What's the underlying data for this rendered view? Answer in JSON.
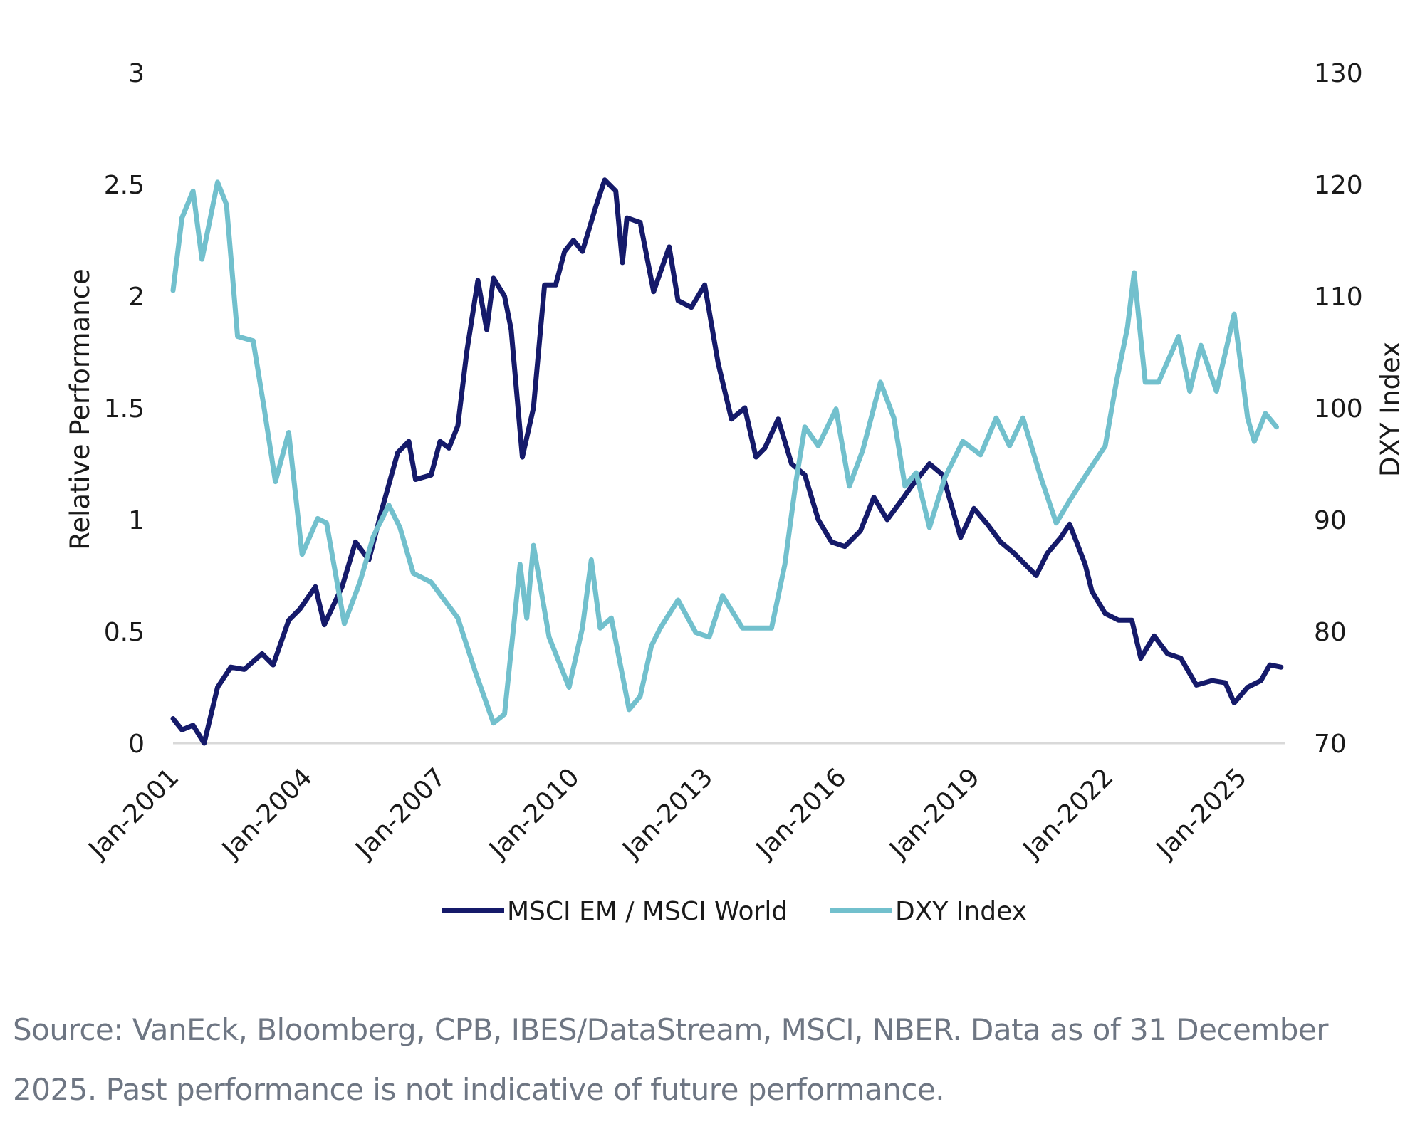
{
  "chart_data": {
    "type": "line",
    "title": "",
    "ylabel": "Relative Performance",
    "y2label": "DXY Index",
    "ylim": [
      0,
      3
    ],
    "y2lim": [
      70,
      130
    ],
    "yticks": [
      "0",
      "0.5",
      "1",
      "1.5",
      "2",
      "2.5",
      "3"
    ],
    "y2ticks": [
      "70",
      "80",
      "90",
      "100",
      "110",
      "120",
      "130"
    ],
    "xlim": [
      2001.0,
      2026.0
    ],
    "xticks": [
      {
        "label": "Jan-2001",
        "x": 2001
      },
      {
        "label": "Jan-2004",
        "x": 2004
      },
      {
        "label": "Jan-2007",
        "x": 2007
      },
      {
        "label": "Jan-2010",
        "x": 2010
      },
      {
        "label": "Jan-2013",
        "x": 2013
      },
      {
        "label": "Jan-2016",
        "x": 2016
      },
      {
        "label": "Jan-2019",
        "x": 2019
      },
      {
        "label": "Jan-2022",
        "x": 2022
      },
      {
        "label": "Jan-2025",
        "x": 2025
      }
    ],
    "legend_position": "bottom-center",
    "series": [
      {
        "name": "MSCI EM / MSCI World",
        "axis": "left",
        "color": "#151a6a",
        "x": [
          2001.0,
          2001.2,
          2001.45,
          2001.7,
          2002.0,
          2002.3,
          2002.6,
          2003.0,
          2003.25,
          2003.6,
          2003.85,
          2004.2,
          2004.4,
          2004.8,
          2005.1,
          2005.4,
          2005.7,
          2006.05,
          2006.3,
          2006.45,
          2006.8,
          2007.0,
          2007.2,
          2007.4,
          2007.6,
          2007.85,
          2008.05,
          2008.2,
          2008.45,
          2008.6,
          2008.85,
          2009.1,
          2009.35,
          2009.6,
          2009.8,
          2010.0,
          2010.2,
          2010.5,
          2010.7,
          2010.95,
          2011.1,
          2011.2,
          2011.5,
          2011.8,
          2012.15,
          2012.35,
          2012.65,
          2012.95,
          2013.25,
          2013.55,
          2013.85,
          2014.1,
          2014.3,
          2014.6,
          2014.9,
          2015.2,
          2015.5,
          2015.8,
          2016.1,
          2016.45,
          2016.75,
          2017.05,
          2017.35,
          2017.6,
          2018.0,
          2018.3,
          2018.7,
          2019.0,
          2019.3,
          2019.6,
          2019.9,
          2020.4,
          2020.65,
          2020.95,
          2021.15,
          2021.5,
          2021.65,
          2021.95,
          2022.25,
          2022.55,
          2022.75,
          2023.05,
          2023.35,
          2023.65,
          2024.0,
          2024.35,
          2024.65,
          2024.85,
          2025.15,
          2025.45,
          2025.65,
          2025.9
        ],
        "values": [
          0.11,
          0.06,
          0.08,
          0.0,
          0.25,
          0.34,
          0.33,
          0.4,
          0.35,
          0.55,
          0.6,
          0.7,
          0.53,
          0.7,
          0.9,
          0.82,
          1.05,
          1.3,
          1.35,
          1.18,
          1.2,
          1.35,
          1.32,
          1.42,
          1.75,
          2.07,
          1.85,
          2.08,
          2.0,
          1.85,
          1.28,
          1.5,
          2.05,
          2.05,
          2.2,
          2.25,
          2.2,
          2.4,
          2.52,
          2.47,
          2.15,
          2.35,
          2.33,
          2.02,
          2.22,
          1.98,
          1.95,
          2.05,
          1.7,
          1.45,
          1.5,
          1.28,
          1.32,
          1.45,
          1.25,
          1.2,
          1.0,
          0.9,
          0.88,
          0.95,
          1.1,
          1.0,
          1.08,
          1.15,
          1.25,
          1.2,
          0.92,
          1.05,
          0.98,
          0.9,
          0.85,
          0.75,
          0.85,
          0.92,
          0.98,
          0.8,
          0.68,
          0.58,
          0.55,
          0.55,
          0.38,
          0.48,
          0.4,
          0.38,
          0.26,
          0.28,
          0.27,
          0.18,
          0.25,
          0.28,
          0.35,
          0.34
        ]
      },
      {
        "name": "DXY Index",
        "axis": "right",
        "color": "#72c0cd",
        "x": [
          2001.0,
          2001.2,
          2001.45,
          2001.65,
          2002.0,
          2002.2,
          2002.45,
          2002.8,
          2003.05,
          2003.3,
          2003.6,
          2003.9,
          2004.25,
          2004.45,
          2004.85,
          2005.2,
          2005.5,
          2005.85,
          2006.1,
          2006.4,
          2006.8,
          2007.1,
          2007.4,
          2007.8,
          2008.2,
          2008.45,
          2008.8,
          2008.95,
          2009.1,
          2009.45,
          2009.9,
          2010.2,
          2010.4,
          2010.6,
          2010.85,
          2011.25,
          2011.5,
          2011.75,
          2011.95,
          2012.35,
          2012.75,
          2013.05,
          2013.35,
          2013.8,
          2014.1,
          2014.45,
          2014.75,
          2015.0,
          2015.2,
          2015.5,
          2015.9,
          2016.2,
          2016.5,
          2016.9,
          2017.2,
          2017.45,
          2017.7,
          2018.0,
          2018.35,
          2018.75,
          2019.15,
          2019.5,
          2019.8,
          2020.1,
          2020.5,
          2020.85,
          2021.15,
          2021.55,
          2021.95,
          2022.2,
          2022.45,
          2022.6,
          2022.85,
          2023.15,
          2023.6,
          2023.85,
          2024.1,
          2024.45,
          2024.85,
          2025.15,
          2025.3,
          2025.55,
          2025.8
        ],
        "values": [
          110.5,
          117.0,
          119.4,
          113.3,
          120.2,
          118.2,
          106.4,
          106.0,
          99.9,
          93.4,
          97.8,
          86.9,
          90.1,
          89.7,
          80.7,
          84.4,
          88.5,
          91.3,
          89.3,
          85.2,
          84.4,
          82.8,
          81.2,
          76.3,
          71.8,
          72.6,
          86.0,
          81.2,
          87.7,
          79.5,
          75.0,
          80.3,
          86.4,
          80.3,
          81.2,
          73.0,
          74.2,
          78.7,
          80.3,
          82.8,
          79.9,
          79.5,
          83.2,
          80.3,
          80.3,
          80.3,
          86.0,
          93.4,
          98.3,
          96.6,
          99.9,
          93.0,
          96.2,
          102.3,
          99.1,
          93.0,
          94.2,
          89.3,
          93.8,
          97.0,
          95.8,
          99.1,
          96.6,
          99.1,
          93.8,
          89.7,
          91.7,
          94.2,
          96.6,
          102.3,
          107.2,
          112.1,
          102.3,
          102.3,
          106.4,
          101.5,
          105.6,
          101.5,
          108.4,
          99.1,
          97.0,
          99.5,
          98.3
        ]
      }
    ]
  },
  "footer": {
    "source_line1": "Source: VanEck, Bloomberg, CPB, IBES/DataStream, MSCI, NBER. Data as of 31 December",
    "source_line2": "2025. Past performance is not indicative of future performance."
  }
}
